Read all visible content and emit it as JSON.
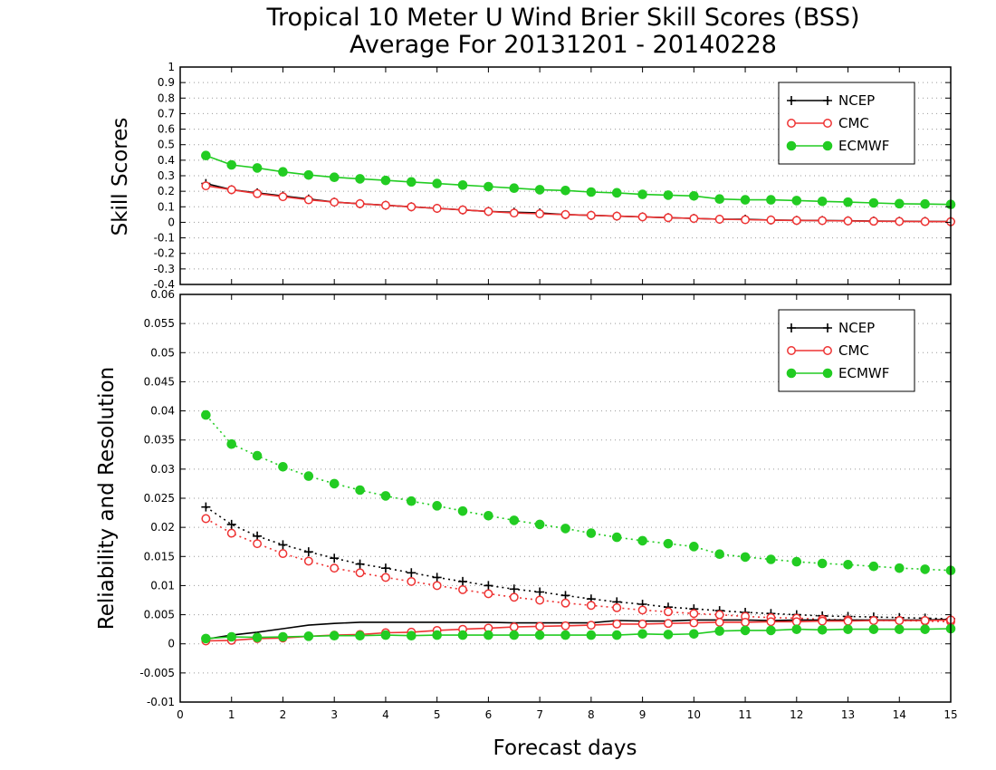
{
  "title_line1": "Tropical 10 Meter U Wind Brier Skill Scores (BSS)",
  "title_line2": "Average For 20131201 - 20140228",
  "colors": {
    "NCEP": "#000000",
    "CMC": "#ee3333",
    "ECMWF": "#22cc22",
    "grid": "#999999"
  },
  "chart_data": [
    {
      "type": "line",
      "ylabel": "Skill Scores",
      "xlim": [
        0,
        15
      ],
      "ylim": [
        -0.4,
        1
      ],
      "yticks": [
        "1",
        "0.9",
        "0.8",
        "0.7",
        "0.6",
        "0.5",
        "0.4",
        "0.3",
        "0.2",
        "0.1",
        "0",
        "-0.1",
        "-0.2",
        "-0.3",
        "-0.4"
      ],
      "grid": true,
      "legend_position": "top-right",
      "x": [
        0.5,
        1,
        1.5,
        2,
        2.5,
        3,
        3.5,
        4,
        4.5,
        5,
        5.5,
        6,
        6.5,
        7,
        7.5,
        8,
        8.5,
        9,
        9.5,
        10,
        10.5,
        11,
        11.5,
        12,
        12.5,
        13,
        13.5,
        14,
        14.5,
        15
      ],
      "series": [
        {
          "name": "NCEP",
          "marker": "plus",
          "style": "solid",
          "values": [
            0.25,
            0.21,
            0.19,
            0.17,
            0.15,
            0.13,
            0.12,
            0.11,
            0.1,
            0.09,
            0.08,
            0.07,
            0.065,
            0.06,
            0.05,
            0.045,
            0.04,
            0.035,
            0.03,
            0.025,
            0.02,
            0.02,
            0.015,
            0.013,
            0.012,
            0.01,
            0.008,
            0.007,
            0.006,
            0.005
          ]
        },
        {
          "name": "CMC",
          "marker": "open-circle",
          "style": "solid",
          "values": [
            0.235,
            0.21,
            0.185,
            0.165,
            0.145,
            0.13,
            0.12,
            0.11,
            0.1,
            0.09,
            0.08,
            0.07,
            0.06,
            0.055,
            0.05,
            0.045,
            0.04,
            0.035,
            0.03,
            0.025,
            0.02,
            0.017,
            0.015,
            0.012,
            0.011,
            0.009,
            0.007,
            0.006,
            0.005,
            0.004
          ]
        },
        {
          "name": "ECMWF",
          "marker": "filled-circle",
          "style": "solid",
          "values": [
            0.43,
            0.37,
            0.35,
            0.325,
            0.305,
            0.29,
            0.28,
            0.27,
            0.26,
            0.25,
            0.24,
            0.23,
            0.22,
            0.21,
            0.205,
            0.195,
            0.19,
            0.18,
            0.175,
            0.17,
            0.15,
            0.145,
            0.145,
            0.14,
            0.135,
            0.13,
            0.125,
            0.12,
            0.118,
            0.115
          ]
        }
      ]
    },
    {
      "type": "line",
      "xlabel": "Forecast days",
      "ylabel": "Reliability and Resolution",
      "xlim": [
        0,
        15
      ],
      "ylim": [
        -0.01,
        0.06
      ],
      "xticks": [
        "0",
        "1",
        "2",
        "3",
        "4",
        "5",
        "6",
        "7",
        "8",
        "9",
        "10",
        "11",
        "12",
        "13",
        "14",
        "15"
      ],
      "yticks": [
        "0.06",
        "0.055",
        "0.05",
        "0.045",
        "0.04",
        "0.035",
        "0.03",
        "0.025",
        "0.02",
        "0.015",
        "0.01",
        "0.005",
        "0",
        "-0.005",
        "-0.01"
      ],
      "grid": true,
      "legend_position": "top-right",
      "x": [
        0.5,
        1,
        1.5,
        2,
        2.5,
        3,
        3.5,
        4,
        4.5,
        5,
        5.5,
        6,
        6.5,
        7,
        7.5,
        8,
        8.5,
        9,
        9.5,
        10,
        10.5,
        11,
        11.5,
        12,
        12.5,
        13,
        13.5,
        14,
        14.5,
        15
      ],
      "series": [
        {
          "name": "NCEP",
          "marker": "plus",
          "style": "dotted",
          "values": [
            0.0235,
            0.0205,
            0.0185,
            0.017,
            0.0158,
            0.0147,
            0.0137,
            0.013,
            0.0122,
            0.0114,
            0.0107,
            0.01,
            0.0094,
            0.0089,
            0.0083,
            0.0077,
            0.0072,
            0.0068,
            0.0063,
            0.006,
            0.0057,
            0.0054,
            0.0052,
            0.005,
            0.0048,
            0.0047,
            0.0046,
            0.0045,
            0.0044,
            0.0043
          ]
        },
        {
          "name": "CMC",
          "marker": "open-circle",
          "style": "dotted",
          "values": [
            0.0215,
            0.019,
            0.0172,
            0.0155,
            0.0142,
            0.013,
            0.0122,
            0.0114,
            0.0107,
            0.01,
            0.0093,
            0.0086,
            0.008,
            0.0075,
            0.007,
            0.0066,
            0.0062,
            0.0058,
            0.0055,
            0.0052,
            0.005,
            0.0047,
            0.0045,
            0.0044,
            0.0042,
            0.0041,
            0.004,
            0.004,
            0.0039,
            0.0038
          ]
        },
        {
          "name": "ECMWF",
          "marker": "filled-circle",
          "style": "dotted",
          "values": [
            0.0393,
            0.0343,
            0.0323,
            0.0304,
            0.0288,
            0.0275,
            0.0264,
            0.0254,
            0.0245,
            0.0237,
            0.0228,
            0.022,
            0.0212,
            0.0205,
            0.0198,
            0.019,
            0.0183,
            0.0177,
            0.0172,
            0.0167,
            0.0154,
            0.0149,
            0.0145,
            0.0141,
            0.0138,
            0.0136,
            0.0133,
            0.013,
            0.0128,
            0.0126
          ]
        },
        {
          "name": "",
          "legend": false,
          "color_of": "NCEP",
          "marker": "none",
          "style": "solid",
          "values": [
            0.0008,
            0.0015,
            0.002,
            0.0026,
            0.0032,
            0.0035,
            0.0037,
            0.0037,
            0.0037,
            0.0037,
            0.0037,
            0.0037,
            0.0036,
            0.0036,
            0.0036,
            0.0036,
            0.004,
            0.0039,
            0.0039,
            0.0041,
            0.0041,
            0.0041,
            0.004,
            0.0041,
            0.0041,
            0.0041,
            0.0041,
            0.0041,
            0.0041,
            0.0042
          ]
        },
        {
          "name": "",
          "legend": false,
          "color_of": "CMC",
          "marker": "open-circle",
          "style": "solid",
          "values": [
            0.0005,
            0.0006,
            0.0009,
            0.001,
            0.0013,
            0.0015,
            0.0016,
            0.0019,
            0.002,
            0.0023,
            0.0025,
            0.0027,
            0.0029,
            0.003,
            0.0031,
            0.0032,
            0.0034,
            0.0034,
            0.0035,
            0.0036,
            0.0037,
            0.0037,
            0.0038,
            0.0038,
            0.0039,
            0.0039,
            0.004,
            0.004,
            0.004,
            0.0041
          ]
        },
        {
          "name": "",
          "legend": false,
          "color_of": "ECMWF",
          "marker": "filled-circle",
          "style": "solid",
          "values": [
            0.0009,
            0.0012,
            0.0011,
            0.0012,
            0.0013,
            0.0014,
            0.0014,
            0.0015,
            0.0014,
            0.0015,
            0.0015,
            0.0015,
            0.0015,
            0.0015,
            0.0015,
            0.0015,
            0.0015,
            0.0017,
            0.0016,
            0.0017,
            0.0022,
            0.0023,
            0.0023,
            0.0025,
            0.0024,
            0.0025,
            0.0025,
            0.0025,
            0.0025,
            0.0026
          ]
        }
      ]
    }
  ]
}
